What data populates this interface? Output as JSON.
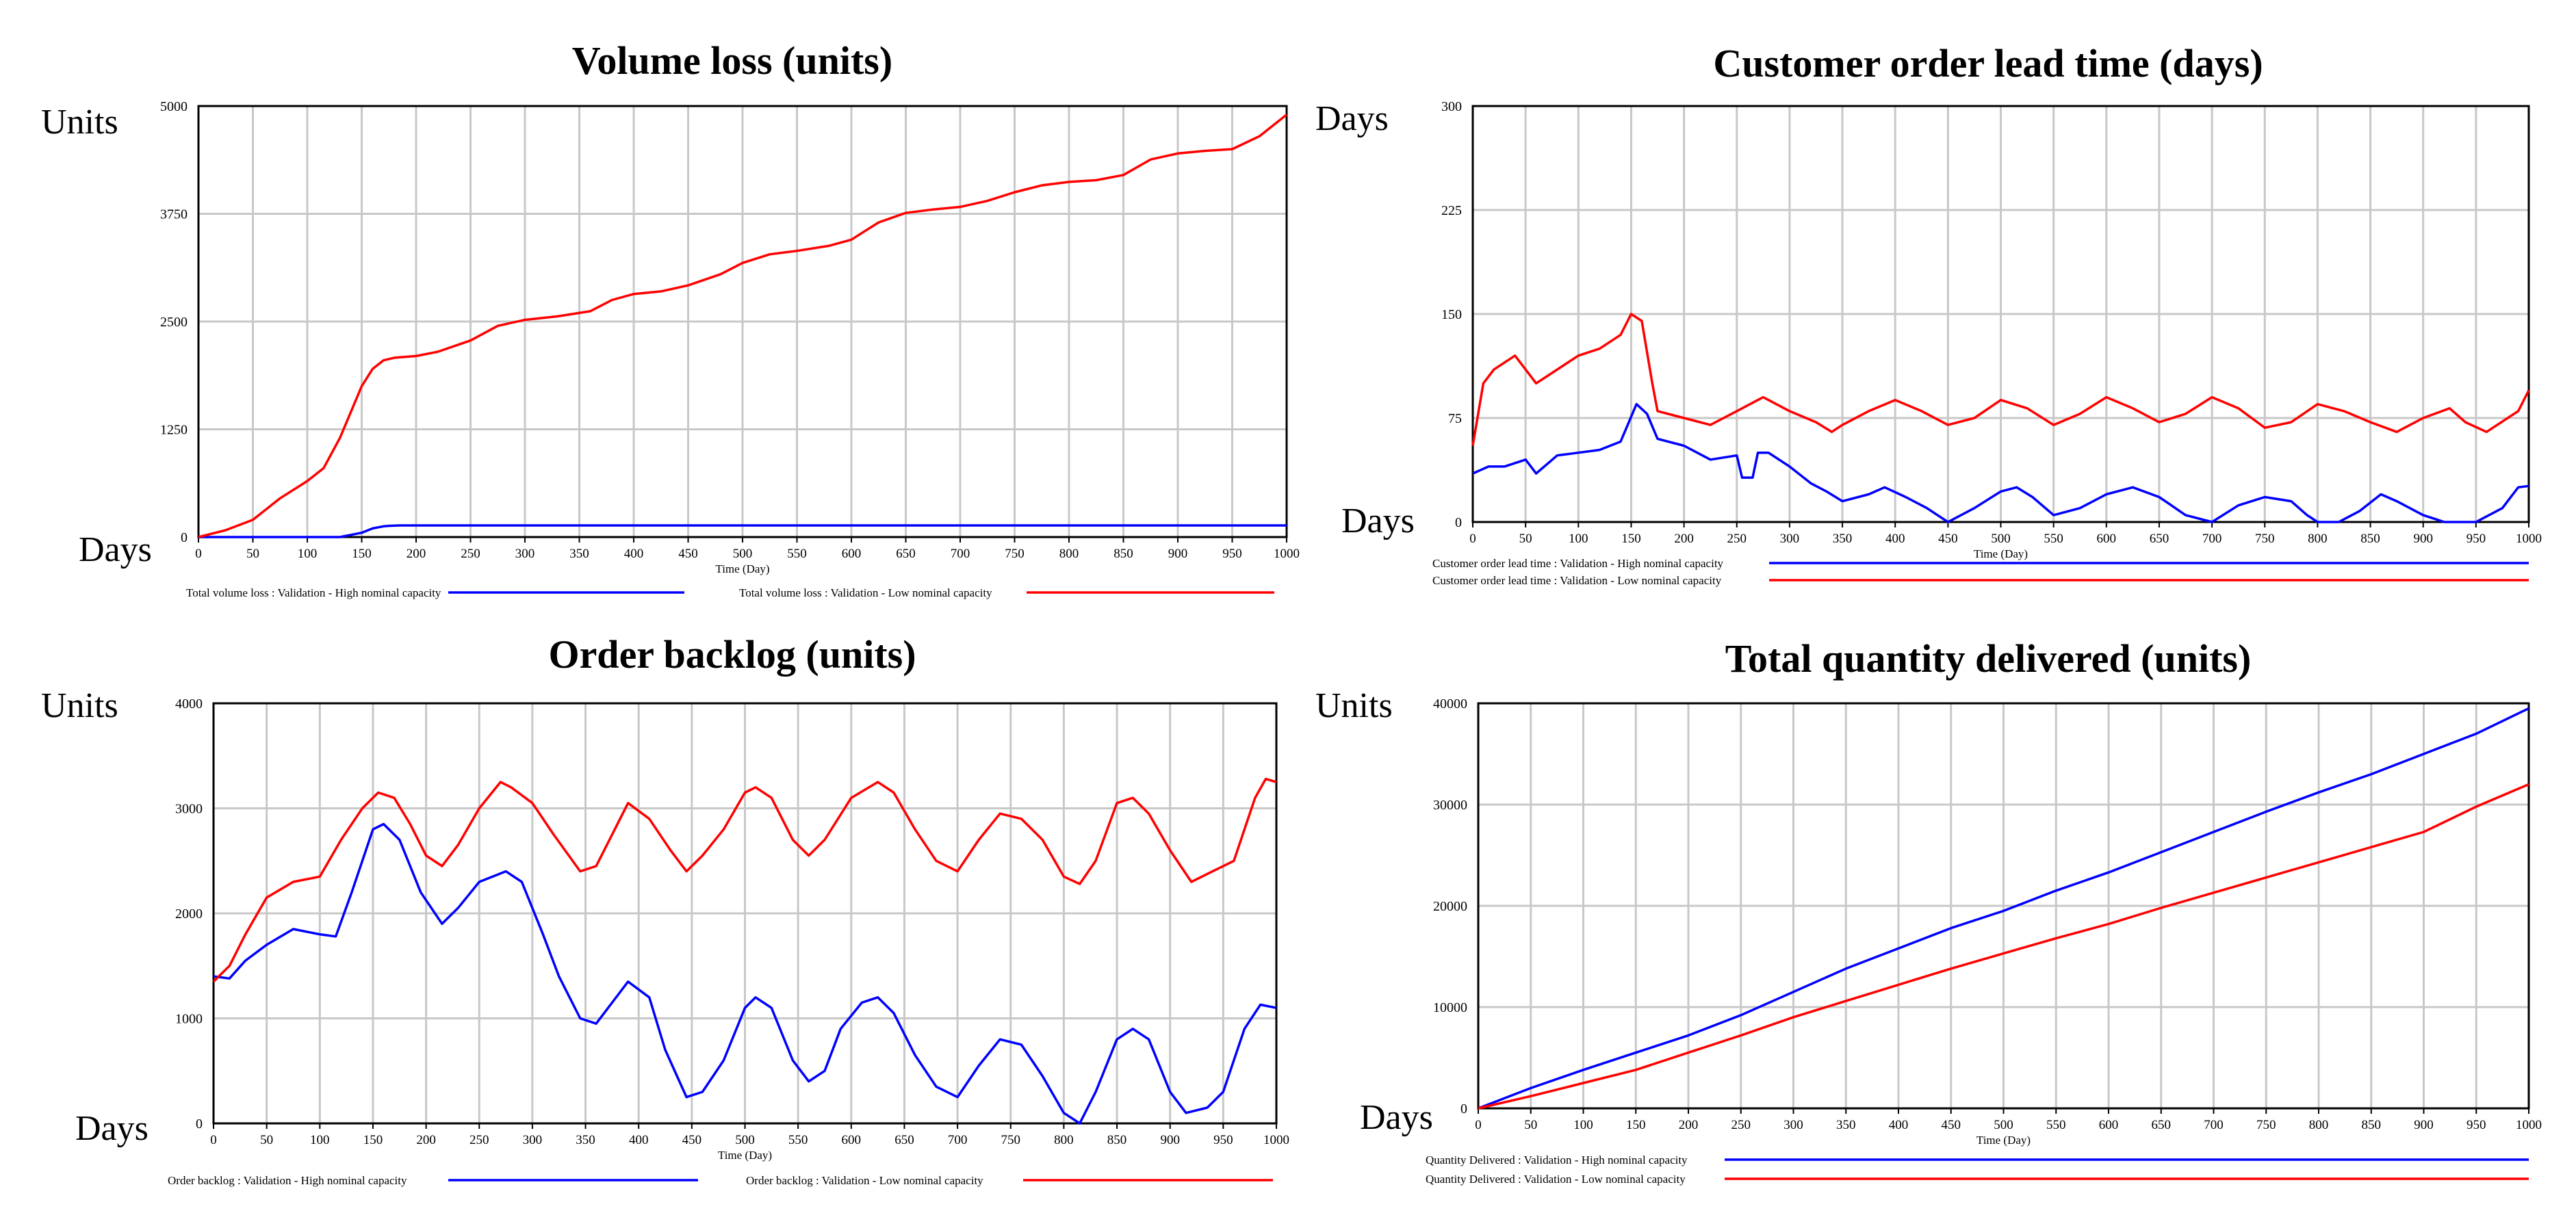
{
  "chart_data": [
    {
      "id": "volume-loss",
      "type": "line",
      "title": "Volume loss (units)",
      "ylabel": "Units",
      "xlabel_side": "Days",
      "x_axis_title": "Time (Day)",
      "xlim": [
        0,
        1000
      ],
      "ylim": [
        0,
        5000
      ],
      "x_ticks": [
        0,
        50,
        100,
        150,
        200,
        250,
        300,
        350,
        400,
        450,
        500,
        550,
        600,
        650,
        700,
        750,
        800,
        850,
        900,
        950,
        1000
      ],
      "y_ticks": [
        0,
        1250,
        2500,
        3750,
        5000
      ],
      "legend_layout": "row",
      "series": [
        {
          "name": "Total volume loss : Validation - High nominal capacity",
          "color": "#0000ff",
          "x": [
            0,
            100,
            130,
            150,
            160,
            170,
            175,
            185,
            1000
          ],
          "y": [
            0,
            0,
            0,
            50,
            100,
            125,
            130,
            135,
            135
          ]
        },
        {
          "name": "Total volume loss : Validation - Low nominal capacity",
          "color": "#ff0000",
          "x": [
            0,
            25,
            50,
            75,
            100,
            115,
            130,
            140,
            150,
            160,
            170,
            180,
            200,
            220,
            250,
            275,
            300,
            330,
            360,
            380,
            400,
            425,
            450,
            480,
            500,
            525,
            550,
            580,
            600,
            625,
            650,
            675,
            700,
            725,
            750,
            775,
            800,
            825,
            850,
            875,
            900,
            925,
            950,
            975,
            1000
          ],
          "y": [
            0,
            80,
            200,
            450,
            650,
            800,
            1150,
            1450,
            1750,
            1950,
            2050,
            2080,
            2100,
            2150,
            2280,
            2450,
            2520,
            2560,
            2620,
            2750,
            2820,
            2850,
            2920,
            3050,
            3180,
            3280,
            3320,
            3380,
            3450,
            3650,
            3760,
            3800,
            3830,
            3900,
            4000,
            4080,
            4120,
            4140,
            4200,
            4380,
            4450,
            4480,
            4500,
            4650,
            4900
          ]
        }
      ]
    },
    {
      "id": "lead-time",
      "type": "line",
      "title": "Customer order lead time (days)",
      "ylabel": "Days",
      "xlabel_side": "Days",
      "x_axis_title": "Time (Day)",
      "xlim": [
        0,
        1000
      ],
      "ylim": [
        0,
        300
      ],
      "x_ticks": [
        0,
        50,
        100,
        150,
        200,
        250,
        300,
        350,
        400,
        450,
        500,
        550,
        600,
        650,
        700,
        750,
        800,
        850,
        900,
        950,
        1000
      ],
      "y_ticks": [
        0,
        75,
        150,
        225,
        300
      ],
      "legend_layout": "column",
      "series": [
        {
          "name": "Customer order lead time : Validation - High nominal capacity",
          "color": "#0000ff",
          "x": [
            0,
            15,
            30,
            50,
            60,
            80,
            100,
            120,
            140,
            155,
            165,
            175,
            200,
            225,
            250,
            255,
            265,
            270,
            280,
            300,
            320,
            335,
            350,
            375,
            390,
            410,
            430,
            450,
            475,
            500,
            515,
            530,
            550,
            575,
            600,
            625,
            650,
            675,
            700,
            725,
            750,
            775,
            790,
            800,
            820,
            840,
            860,
            875,
            900,
            920,
            930,
            950,
            975,
            990,
            1000
          ],
          "y": [
            35,
            40,
            40,
            45,
            35,
            48,
            50,
            52,
            58,
            85,
            78,
            60,
            55,
            45,
            48,
            32,
            32,
            50,
            50,
            40,
            28,
            22,
            15,
            20,
            25,
            18,
            10,
            0,
            10,
            22,
            25,
            18,
            5,
            10,
            20,
            25,
            18,
            5,
            0,
            12,
            18,
            15,
            5,
            0,
            0,
            8,
            20,
            15,
            5,
            0,
            0,
            0,
            10,
            25,
            26
          ]
        },
        {
          "name": "Customer order lead time : Validation - Low nominal capacity",
          "color": "#ff0000",
          "x": [
            0,
            10,
            20,
            40,
            60,
            80,
            100,
            120,
            140,
            150,
            160,
            170,
            175,
            200,
            225,
            250,
            275,
            300,
            325,
            340,
            350,
            375,
            400,
            425,
            450,
            475,
            500,
            525,
            550,
            575,
            600,
            625,
            650,
            675,
            700,
            725,
            750,
            775,
            800,
            825,
            850,
            875,
            900,
            925,
            940,
            960,
            990,
            1000
          ],
          "y": [
            55,
            100,
            110,
            120,
            100,
            110,
            120,
            125,
            135,
            150,
            145,
            100,
            80,
            75,
            70,
            80,
            90,
            80,
            72,
            65,
            70,
            80,
            88,
            80,
            70,
            75,
            88,
            82,
            70,
            78,
            90,
            82,
            72,
            78,
            90,
            82,
            68,
            72,
            85,
            80,
            72,
            65,
            75,
            82,
            72,
            65,
            80,
            95
          ]
        }
      ]
    },
    {
      "id": "order-backlog",
      "type": "line",
      "title": "Order backlog (units)",
      "ylabel": "Units",
      "xlabel_side": "Days",
      "x_axis_title": "Time (Day)",
      "xlim": [
        0,
        1000
      ],
      "ylim": [
        0,
        4000
      ],
      "x_ticks": [
        0,
        50,
        100,
        150,
        200,
        250,
        300,
        350,
        400,
        450,
        500,
        550,
        600,
        650,
        700,
        750,
        800,
        850,
        900,
        950,
        1000
      ],
      "y_ticks": [
        0,
        1000,
        2000,
        3000,
        4000
      ],
      "legend_layout": "row",
      "series": [
        {
          "name": "Order backlog : Validation - High nominal capacity",
          "color": "#0000ff",
          "x": [
            0,
            15,
            30,
            50,
            75,
            100,
            115,
            130,
            150,
            160,
            175,
            195,
            215,
            230,
            250,
            275,
            290,
            310,
            325,
            345,
            360,
            375,
            390,
            410,
            425,
            445,
            460,
            480,
            500,
            510,
            525,
            545,
            560,
            575,
            590,
            610,
            625,
            640,
            660,
            680,
            700,
            720,
            740,
            760,
            780,
            800,
            815,
            830,
            850,
            865,
            880,
            900,
            915,
            935,
            950,
            970,
            985,
            1000
          ],
          "y": [
            1400,
            1380,
            1550,
            1700,
            1850,
            1800,
            1780,
            2200,
            2800,
            2850,
            2700,
            2200,
            1900,
            2050,
            2300,
            2400,
            2300,
            1800,
            1400,
            1000,
            950,
            1150,
            1350,
            1200,
            700,
            250,
            300,
            600,
            1100,
            1200,
            1100,
            600,
            400,
            500,
            900,
            1150,
            1200,
            1050,
            650,
            350,
            250,
            550,
            800,
            750,
            450,
            100,
            0,
            300,
            800,
            900,
            800,
            300,
            100,
            150,
            300,
            900,
            1130,
            1100
          ]
        },
        {
          "name": "Order backlog : Validation - Low nominal capacity",
          "color": "#ff0000",
          "x": [
            0,
            15,
            30,
            50,
            75,
            100,
            120,
            140,
            155,
            170,
            185,
            200,
            215,
            230,
            250,
            270,
            280,
            300,
            320,
            345,
            360,
            375,
            390,
            410,
            430,
            445,
            460,
            480,
            500,
            510,
            525,
            545,
            560,
            575,
            600,
            625,
            640,
            660,
            680,
            700,
            720,
            740,
            760,
            780,
            800,
            815,
            830,
            850,
            865,
            880,
            900,
            920,
            940,
            960,
            980,
            990,
            1000
          ],
          "y": [
            1350,
            1500,
            1800,
            2150,
            2300,
            2350,
            2700,
            3000,
            3150,
            3100,
            2850,
            2550,
            2450,
            2650,
            3000,
            3250,
            3200,
            3050,
            2750,
            2400,
            2450,
            2750,
            3050,
            2900,
            2600,
            2400,
            2550,
            2800,
            3150,
            3200,
            3100,
            2700,
            2550,
            2700,
            3100,
            3250,
            3150,
            2800,
            2500,
            2400,
            2700,
            2950,
            2900,
            2700,
            2350,
            2280,
            2500,
            3050,
            3100,
            2950,
            2600,
            2300,
            2400,
            2500,
            3100,
            3280,
            3250
          ]
        }
      ]
    },
    {
      "id": "quantity-delivered",
      "type": "line",
      "title": "Total quantity delivered  (units)",
      "ylabel": "Units",
      "xlabel_side": "Days",
      "x_axis_title": "Time (Day)",
      "xlim": [
        0,
        1000
      ],
      "ylim": [
        0,
        40000
      ],
      "x_ticks": [
        0,
        50,
        100,
        150,
        200,
        250,
        300,
        350,
        400,
        450,
        500,
        550,
        600,
        650,
        700,
        750,
        800,
        850,
        900,
        950,
        1000
      ],
      "y_ticks": [
        0,
        10000,
        20000,
        30000,
        40000
      ],
      "legend_layout": "column",
      "series": [
        {
          "name": "Quantity Delivered : Validation - High nominal capacity",
          "color": "#0000ff",
          "x": [
            0,
            50,
            100,
            150,
            200,
            250,
            300,
            350,
            400,
            450,
            500,
            550,
            600,
            650,
            700,
            750,
            800,
            850,
            900,
            950,
            1000
          ],
          "y": [
            0,
            2000,
            3800,
            5500,
            7200,
            9200,
            11500,
            13800,
            15800,
            17800,
            19500,
            21500,
            23300,
            25300,
            27300,
            29300,
            31200,
            33000,
            35000,
            37000,
            39500
          ]
        },
        {
          "name": "Quantity Delivered : Validation - Low nominal capacity",
          "color": "#ff0000",
          "x": [
            0,
            50,
            100,
            150,
            200,
            250,
            300,
            350,
            400,
            450,
            500,
            550,
            600,
            650,
            700,
            750,
            800,
            850,
            900,
            950,
            1000
          ],
          "y": [
            0,
            1200,
            2500,
            3800,
            5500,
            7200,
            9000,
            10600,
            12200,
            13800,
            15300,
            16800,
            18200,
            19800,
            21300,
            22800,
            24300,
            25800,
            27300,
            29800,
            32000
          ]
        }
      ]
    }
  ]
}
